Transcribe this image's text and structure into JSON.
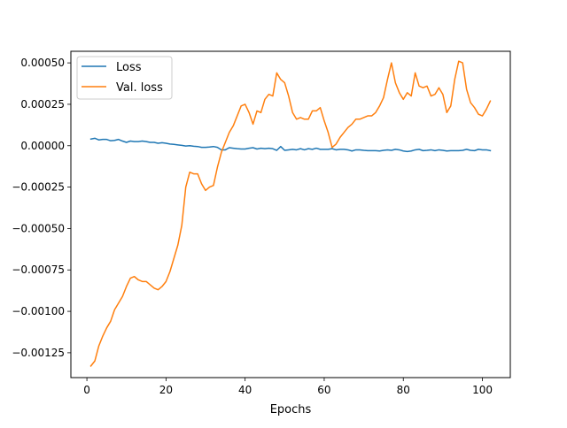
{
  "chart_data": {
    "type": "line",
    "title": "",
    "xlabel": "Epochs",
    "ylabel": "",
    "xlim": [
      -4.05,
      107.05
    ],
    "ylim": [
      -0.0014,
      0.00057
    ],
    "xticks": [
      0,
      20,
      40,
      60,
      80,
      100
    ],
    "yticks": [
      -0.00125,
      -0.001,
      -0.00075,
      -0.0005,
      -0.00025,
      0.0,
      0.00025,
      0.0005
    ],
    "ytick_labels": [
      "−0.00125",
      "−0.00100",
      "−0.00075",
      "−0.00050",
      "−0.00025",
      "0.00000",
      "0.00025",
      "0.00050"
    ],
    "grid": false,
    "legend": "top-left",
    "series": [
      {
        "name": "Loss",
        "color": "#1f77b4",
        "x": [
          1,
          2,
          3,
          4,
          5,
          6,
          7,
          8,
          9,
          10,
          11,
          12,
          13,
          14,
          15,
          16,
          17,
          18,
          19,
          20,
          21,
          22,
          23,
          24,
          25,
          26,
          27,
          28,
          29,
          30,
          31,
          32,
          33,
          34,
          35,
          36,
          37,
          38,
          39,
          40,
          41,
          42,
          43,
          44,
          45,
          46,
          47,
          48,
          49,
          50,
          51,
          52,
          53,
          54,
          55,
          56,
          57,
          58,
          59,
          60,
          61,
          62,
          63,
          64,
          65,
          66,
          67,
          68,
          69,
          70,
          71,
          72,
          73,
          74,
          75,
          76,
          77,
          78,
          79,
          80,
          81,
          82,
          83,
          84,
          85,
          86,
          87,
          88,
          89,
          90,
          91,
          92,
          93,
          94,
          95,
          96,
          97,
          98,
          99,
          100,
          101,
          102
        ],
        "y": [
          4e-05,
          4.5e-05,
          3.5e-05,
          3.8e-05,
          3.8e-05,
          3e-05,
          3.2e-05,
          3.8e-05,
          2.8e-05,
          2e-05,
          2.8e-05,
          2.5e-05,
          2.5e-05,
          2.8e-05,
          2.5e-05,
          2e-05,
          2e-05,
          1.5e-05,
          1.8e-05,
          1.5e-05,
          1e-05,
          8e-06,
          5e-06,
          2e-06,
          -2e-06,
          0.0,
          -3e-06,
          -5e-06,
          -1e-05,
          -1e-05,
          -8e-06,
          -5e-06,
          -1e-05,
          -2.5e-05,
          -2.5e-05,
          -1.2e-05,
          -1.5e-05,
          -1.8e-05,
          -2e-05,
          -2e-05,
          -1.5e-05,
          -1.2e-05,
          -2e-05,
          -1.5e-05,
          -1.8e-05,
          -1.5e-05,
          -1.8e-05,
          -2.8e-05,
          -5e-06,
          -2.8e-05,
          -2.5e-05,
          -2.2e-05,
          -2.5e-05,
          -1.8e-05,
          -2.5e-05,
          -1.8e-05,
          -2.2e-05,
          -1.5e-05,
          -2.2e-05,
          -2.2e-05,
          -2.2e-05,
          -1.8e-05,
          -2.5e-05,
          -2.2e-05,
          -2.2e-05,
          -2.5e-05,
          -3.2e-05,
          -2.5e-05,
          -2.5e-05,
          -2.8e-05,
          -3e-05,
          -3e-05,
          -3e-05,
          -3.2e-05,
          -2.8e-05,
          -2.5e-05,
          -2.8e-05,
          -2.2e-05,
          -2.5e-05,
          -3.2e-05,
          -3.5e-05,
          -3.2e-05,
          -2.5e-05,
          -2.2e-05,
          -3e-05,
          -2.8e-05,
          -2.5e-05,
          -3e-05,
          -2.5e-05,
          -2.8e-05,
          -3.2e-05,
          -3e-05,
          -3e-05,
          -3e-05,
          -2.8e-05,
          -2.2e-05,
          -2.8e-05,
          -3e-05,
          -2.2e-05,
          -2.5e-05,
          -2.5e-05,
          -3e-05
        ]
      },
      {
        "name": "Val. loss",
        "color": "#ff7f0e",
        "x": [
          1,
          2,
          3,
          4,
          5,
          6,
          7,
          8,
          9,
          10,
          11,
          12,
          13,
          14,
          15,
          16,
          17,
          18,
          19,
          20,
          21,
          22,
          23,
          24,
          25,
          26,
          27,
          28,
          29,
          30,
          31,
          32,
          33,
          34,
          35,
          36,
          37,
          38,
          39,
          40,
          41,
          42,
          43,
          44,
          45,
          46,
          47,
          48,
          49,
          50,
          51,
          52,
          53,
          54,
          55,
          56,
          57,
          58,
          59,
          60,
          61,
          62,
          63,
          64,
          65,
          66,
          67,
          68,
          69,
          70,
          71,
          72,
          73,
          74,
          75,
          76,
          77,
          78,
          79,
          80,
          81,
          82,
          83,
          84,
          85,
          86,
          87,
          88,
          89,
          90,
          91,
          92,
          93,
          94,
          95,
          96,
          97,
          98,
          99,
          100,
          101,
          102
        ],
        "y": [
          -0.00133,
          -0.0013,
          -0.00121,
          -0.00115,
          -0.0011,
          -0.00106,
          -0.00099,
          -0.00095,
          -0.00091,
          -0.00085,
          -0.0008,
          -0.00079,
          -0.00081,
          -0.00082,
          -0.00082,
          -0.00084,
          -0.00086,
          -0.00087,
          -0.00085,
          -0.00082,
          -0.00076,
          -0.00068,
          -0.0006,
          -0.00048,
          -0.00025,
          -0.00016,
          -0.00017,
          -0.00017,
          -0.00023,
          -0.00027,
          -0.00025,
          -0.00024,
          -0.00013,
          -4e-05,
          2e-05,
          8e-05,
          0.00012,
          0.00018,
          0.00024,
          0.00025,
          0.0002,
          0.00013,
          0.00021,
          0.0002,
          0.00028,
          0.00031,
          0.0003,
          0.00044,
          0.0004,
          0.00038,
          0.0003,
          0.0002,
          0.00016,
          0.00017,
          0.00016,
          0.00016,
          0.00021,
          0.00021,
          0.00023,
          0.00015,
          8e-05,
          -1e-05,
          1e-05,
          5e-05,
          8e-05,
          0.00011,
          0.00013,
          0.00016,
          0.00016,
          0.00017,
          0.00018,
          0.00018,
          0.0002,
          0.00024,
          0.00029,
          0.0004,
          0.0005,
          0.00038,
          0.00032,
          0.00028,
          0.00032,
          0.0003,
          0.00044,
          0.00036,
          0.00035,
          0.00036,
          0.0003,
          0.00031,
          0.00035,
          0.00031,
          0.0002,
          0.00024,
          0.0004,
          0.00051,
          0.0005,
          0.00034,
          0.00026,
          0.00023,
          0.00019,
          0.00018,
          0.00022,
          0.00027
        ]
      }
    ]
  }
}
